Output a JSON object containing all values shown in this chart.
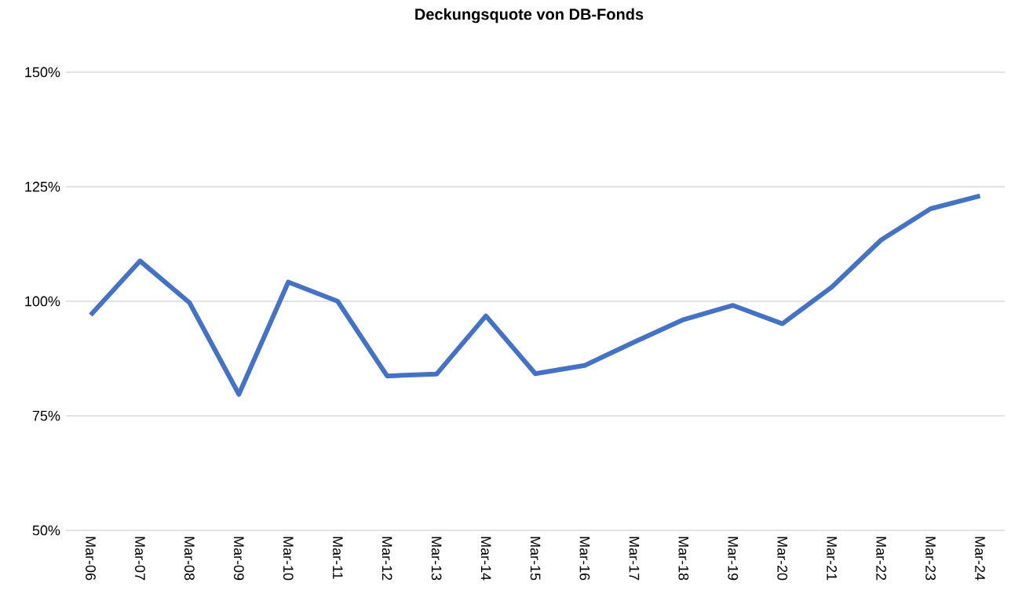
{
  "chart_data": {
    "type": "line",
    "title": "Deckungsquote von DB-Fonds",
    "categories": [
      "Mar-06",
      "Mar-07",
      "Mar-08",
      "Mar-09",
      "Mar-10",
      "Mar-11",
      "Mar-12",
      "Mar-13",
      "Mar-14",
      "Mar-15",
      "Mar-16",
      "Mar-17",
      "Mar-18",
      "Mar-19",
      "Mar-20",
      "Mar-21",
      "Mar-22",
      "Mar-23",
      "Mar-24"
    ],
    "values": [
      97,
      108.8,
      99.7,
      79.7,
      104.2,
      100,
      83.7,
      84.1,
      96.8,
      84.2,
      86,
      91.1,
      96,
      99.1,
      95.1,
      103.1,
      113.4,
      120.2,
      123
    ],
    "color": "#4472c4",
    "ylim": [
      50,
      150
    ],
    "yticks": [
      {
        "value": 50,
        "label": "50%"
      },
      {
        "value": 75,
        "label": "75%"
      },
      {
        "value": 100,
        "label": "100%"
      },
      {
        "value": 125,
        "label": "125%"
      },
      {
        "value": 150,
        "label": "150%"
      }
    ],
    "grid": "y",
    "marker": "none",
    "line_style": "solid"
  }
}
